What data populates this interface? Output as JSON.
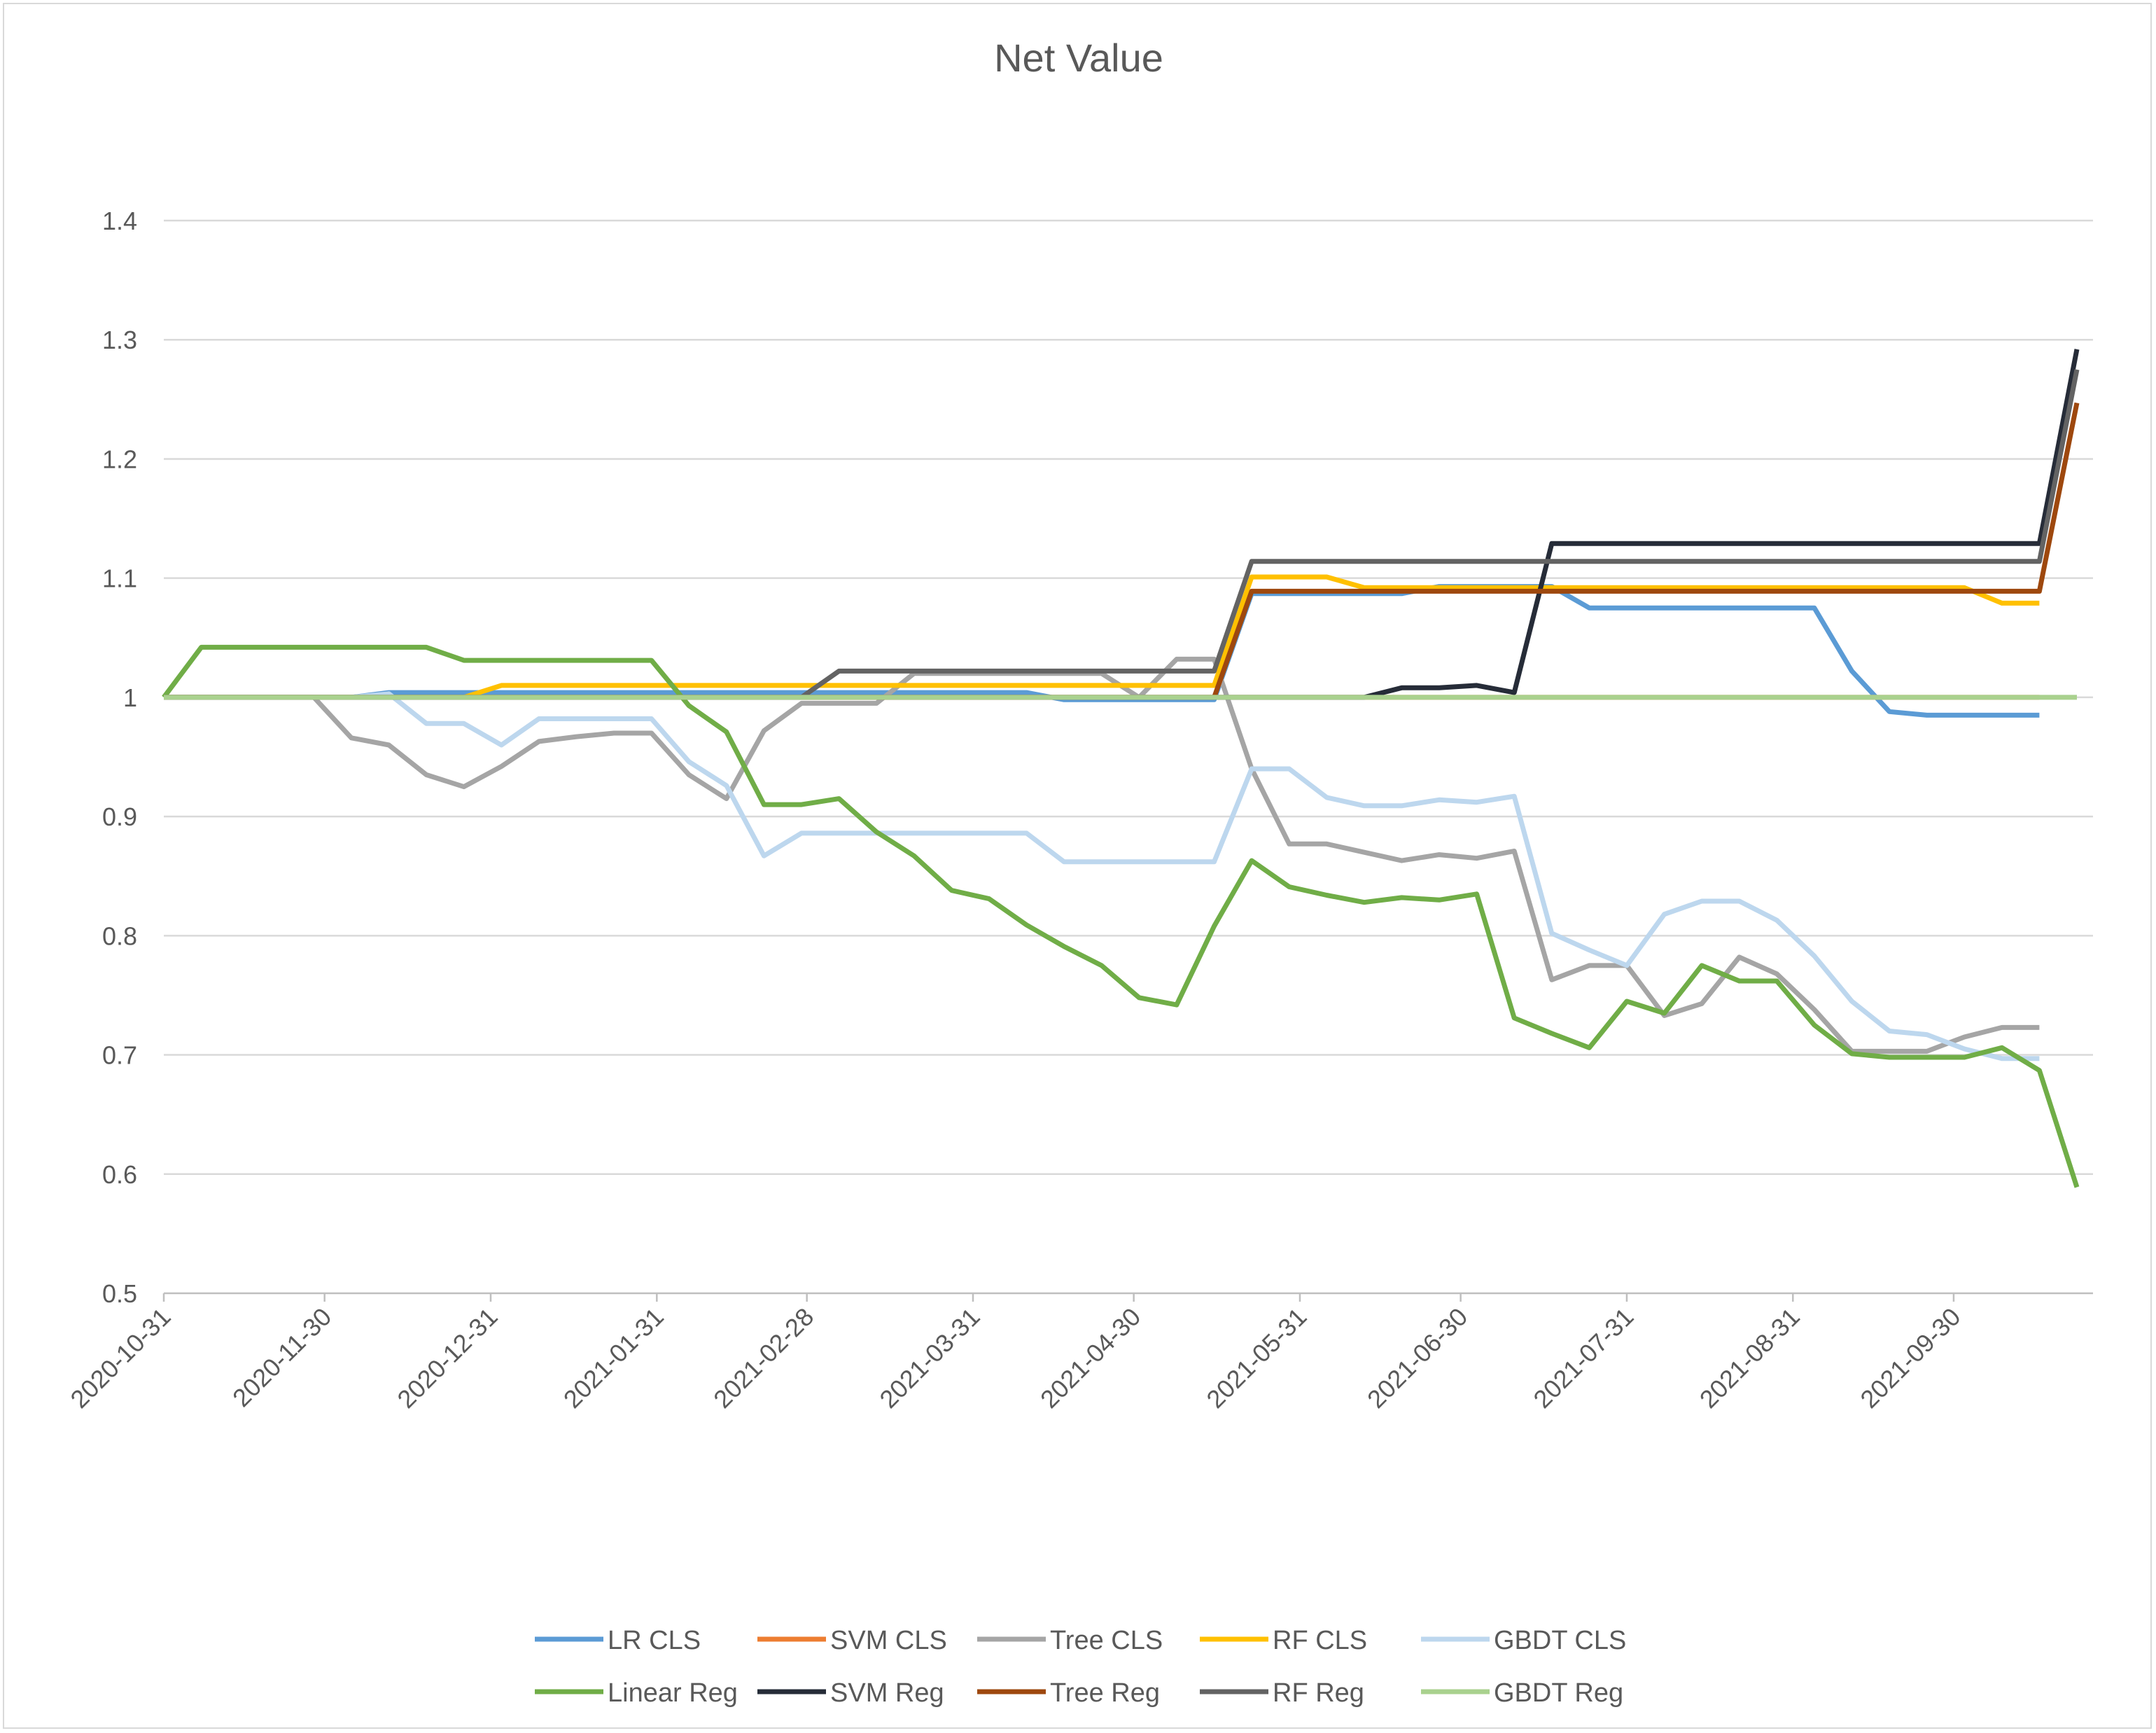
{
  "chart_data": {
    "type": "line",
    "title": "Net Value",
    "xlabel": "",
    "ylabel": "",
    "ylim": [
      0.5,
      1.4
    ],
    "yticks": [
      "0.5",
      "0.6",
      "0.7",
      "0.8",
      "0.9",
      "1",
      "1.1",
      "1.2",
      "1.3",
      "1.4"
    ],
    "x_start": "2020-10-31",
    "x_end": "2021-10-26",
    "xtick_labels": [
      "2020-10-31",
      "2020-11-30",
      "2020-12-31",
      "2021-01-31",
      "2021-02-28",
      "2021-03-31",
      "2021-04-30",
      "2021-05-31",
      "2021-06-30",
      "2021-07-31",
      "2021-08-31",
      "2021-09-30"
    ],
    "x": [
      "2020-10-31",
      "2020-11-07",
      "2020-11-14",
      "2020-11-21",
      "2020-11-28",
      "2020-12-05",
      "2020-12-12",
      "2020-12-19",
      "2020-12-26",
      "2021-01-02",
      "2021-01-09",
      "2021-01-16",
      "2021-01-23",
      "2021-01-30",
      "2021-02-06",
      "2021-02-13",
      "2021-02-20",
      "2021-02-27",
      "2021-03-06",
      "2021-03-13",
      "2021-03-20",
      "2021-03-27",
      "2021-04-03",
      "2021-04-10",
      "2021-04-17",
      "2021-04-24",
      "2021-05-01",
      "2021-05-08",
      "2021-05-15",
      "2021-05-22",
      "2021-05-29",
      "2021-06-05",
      "2021-06-12",
      "2021-06-19",
      "2021-06-26",
      "2021-07-03",
      "2021-07-10",
      "2021-07-17",
      "2021-07-24",
      "2021-07-31",
      "2021-08-07",
      "2021-08-14",
      "2021-08-21",
      "2021-08-28",
      "2021-09-04",
      "2021-09-11",
      "2021-09-18",
      "2021-09-25",
      "2021-10-02",
      "2021-10-09",
      "2021-10-16",
      "2021-10-23"
    ],
    "series": [
      {
        "name": "LR CLS",
        "color": "#5b9bd5",
        "values": [
          1,
          1,
          1,
          1,
          1,
          1,
          1.004,
          1.004,
          1.004,
          1.004,
          1.004,
          1.004,
          1.004,
          1.004,
          1.004,
          1.004,
          1.004,
          1.004,
          1.004,
          1.004,
          1.004,
          1.004,
          1.004,
          1.004,
          0.998,
          0.998,
          0.998,
          0.998,
          0.998,
          1.087,
          1.087,
          1.087,
          1.087,
          1.087,
          1.093,
          1.093,
          1.093,
          1.093,
          1.075,
          1.075,
          1.075,
          1.075,
          1.075,
          1.075,
          1.075,
          1.022,
          0.988,
          0.985,
          0.985,
          0.985,
          0.985,
          null
        ]
      },
      {
        "name": "SVM CLS",
        "color": "#ed7d31",
        "values": [
          1,
          1,
          1,
          1,
          1,
          1,
          1,
          1,
          1,
          1,
          1,
          1,
          1,
          1,
          1,
          1,
          1,
          1,
          1,
          1,
          1,
          1,
          1,
          1,
          1,
          1,
          1,
          1,
          1,
          1,
          1,
          1,
          1,
          1,
          1,
          1,
          1,
          1,
          1,
          1,
          1,
          1,
          1,
          1,
          1,
          1,
          1,
          1,
          1,
          1,
          1,
          null
        ]
      },
      {
        "name": "Tree CLS",
        "color": "#a5a5a5",
        "values": [
          1,
          1,
          1,
          1,
          1,
          0.966,
          0.96,
          0.935,
          0.925,
          0.942,
          0.963,
          0.967,
          0.97,
          0.97,
          0.935,
          0.915,
          0.972,
          0.995,
          0.995,
          0.995,
          1.02,
          1.02,
          1.02,
          1.02,
          1.02,
          1.02,
          1.0,
          1.032,
          1.032,
          0.94,
          0.877,
          0.877,
          0.87,
          0.863,
          0.868,
          0.865,
          0.871,
          0.763,
          0.775,
          0.775,
          0.733,
          0.743,
          0.782,
          0.768,
          0.738,
          0.703,
          0.703,
          0.703,
          0.715,
          0.723,
          0.723,
          null
        ]
      },
      {
        "name": "RF CLS",
        "color": "#ffc000",
        "values": [
          1,
          1,
          1,
          1,
          1,
          1,
          1,
          1,
          1,
          1.01,
          1.01,
          1.01,
          1.01,
          1.01,
          1.01,
          1.01,
          1.01,
          1.01,
          1.01,
          1.01,
          1.01,
          1.01,
          1.01,
          1.01,
          1.01,
          1.01,
          1.01,
          1.01,
          1.01,
          1.101,
          1.101,
          1.101,
          1.092,
          1.092,
          1.092,
          1.092,
          1.092,
          1.092,
          1.092,
          1.092,
          1.092,
          1.092,
          1.092,
          1.092,
          1.092,
          1.092,
          1.092,
          1.092,
          1.092,
          1.079,
          1.079,
          null
        ]
      },
      {
        "name": "GBDT CLS",
        "color": "#bdd7ee",
        "values": [
          1,
          1,
          1,
          1,
          1,
          1,
          1.003,
          0.978,
          0.978,
          0.96,
          0.982,
          0.982,
          0.982,
          0.982,
          0.946,
          0.926,
          0.867,
          0.886,
          0.886,
          0.886,
          0.886,
          0.886,
          0.886,
          0.886,
          0.862,
          0.862,
          0.862,
          0.862,
          0.862,
          0.94,
          0.94,
          0.916,
          0.909,
          0.909,
          0.914,
          0.912,
          0.917,
          0.802,
          0.788,
          0.775,
          0.818,
          0.829,
          0.829,
          0.813,
          0.783,
          0.745,
          0.72,
          0.717,
          0.705,
          0.697,
          0.697,
          null
        ]
      },
      {
        "name": "Linear Reg",
        "color": "#70ad47",
        "values": [
          1,
          1.042,
          1.042,
          1.042,
          1.042,
          1.042,
          1.042,
          1.042,
          1.031,
          1.031,
          1.031,
          1.031,
          1.031,
          1.031,
          0.993,
          0.971,
          0.91,
          0.91,
          0.915,
          0.887,
          0.867,
          0.838,
          0.831,
          0.809,
          0.791,
          0.775,
          0.748,
          0.742,
          0.808,
          0.863,
          0.841,
          0.834,
          0.828,
          0.832,
          0.83,
          0.835,
          0.731,
          0.718,
          0.706,
          0.745,
          0.735,
          0.775,
          0.762,
          0.762,
          0.725,
          0.701,
          0.698,
          0.698,
          0.698,
          0.706,
          0.687,
          0.589
        ]
      },
      {
        "name": "SVM Reg",
        "color": "#262c38",
        "values": [
          1,
          1,
          1,
          1,
          1,
          1,
          1,
          1,
          1,
          1,
          1,
          1,
          1,
          1,
          1,
          1,
          1,
          1,
          1,
          1,
          1,
          1,
          1,
          1,
          1,
          1,
          1,
          1,
          1,
          1,
          1,
          1,
          1,
          1.008,
          1.008,
          1.01,
          1.004,
          1.129,
          1.129,
          1.129,
          1.129,
          1.129,
          1.129,
          1.129,
          1.129,
          1.129,
          1.129,
          1.129,
          1.129,
          1.129,
          1.129,
          1.292
        ]
      },
      {
        "name": "Tree Reg",
        "color": "#9e480e",
        "values": [
          1,
          1,
          1,
          1,
          1,
          1,
          1,
          1,
          1,
          1,
          1,
          1,
          1,
          1,
          1,
          1,
          1,
          1,
          1,
          1,
          1,
          1,
          1,
          1,
          1,
          1,
          1,
          1,
          1,
          1.089,
          1.089,
          1.089,
          1.089,
          1.089,
          1.089,
          1.089,
          1.089,
          1.089,
          1.089,
          1.089,
          1.089,
          1.089,
          1.089,
          1.089,
          1.089,
          1.089,
          1.089,
          1.089,
          1.089,
          1.089,
          1.089,
          1.247
        ]
      },
      {
        "name": "RF Reg",
        "color": "#636363",
        "values": [
          1,
          1,
          1,
          1,
          1,
          1,
          1,
          1,
          1,
          1,
          1,
          1,
          1,
          1,
          1,
          1,
          1,
          1,
          1.022,
          1.022,
          1.022,
          1.022,
          1.022,
          1.022,
          1.022,
          1.022,
          1.022,
          1.022,
          1.022,
          1.114,
          1.114,
          1.114,
          1.114,
          1.114,
          1.114,
          1.114,
          1.114,
          1.114,
          1.114,
          1.114,
          1.114,
          1.114,
          1.114,
          1.114,
          1.114,
          1.114,
          1.114,
          1.114,
          1.114,
          1.114,
          1.114,
          1.275
        ]
      },
      {
        "name": "GBDT Reg",
        "color": "#a9d18e",
        "values": [
          1,
          1,
          1,
          1,
          1,
          1,
          1,
          1,
          1,
          1,
          1,
          1,
          1,
          1,
          1,
          1,
          1,
          1,
          1,
          1,
          1,
          1,
          1,
          1,
          1,
          1,
          1,
          1,
          1,
          1,
          1,
          1,
          1,
          1,
          1,
          1,
          1,
          1,
          1,
          1,
          1,
          1,
          1,
          1,
          1,
          1,
          1,
          1,
          1,
          1,
          1,
          1
        ]
      }
    ],
    "grid": "horizontal",
    "legend_position": "bottom"
  }
}
